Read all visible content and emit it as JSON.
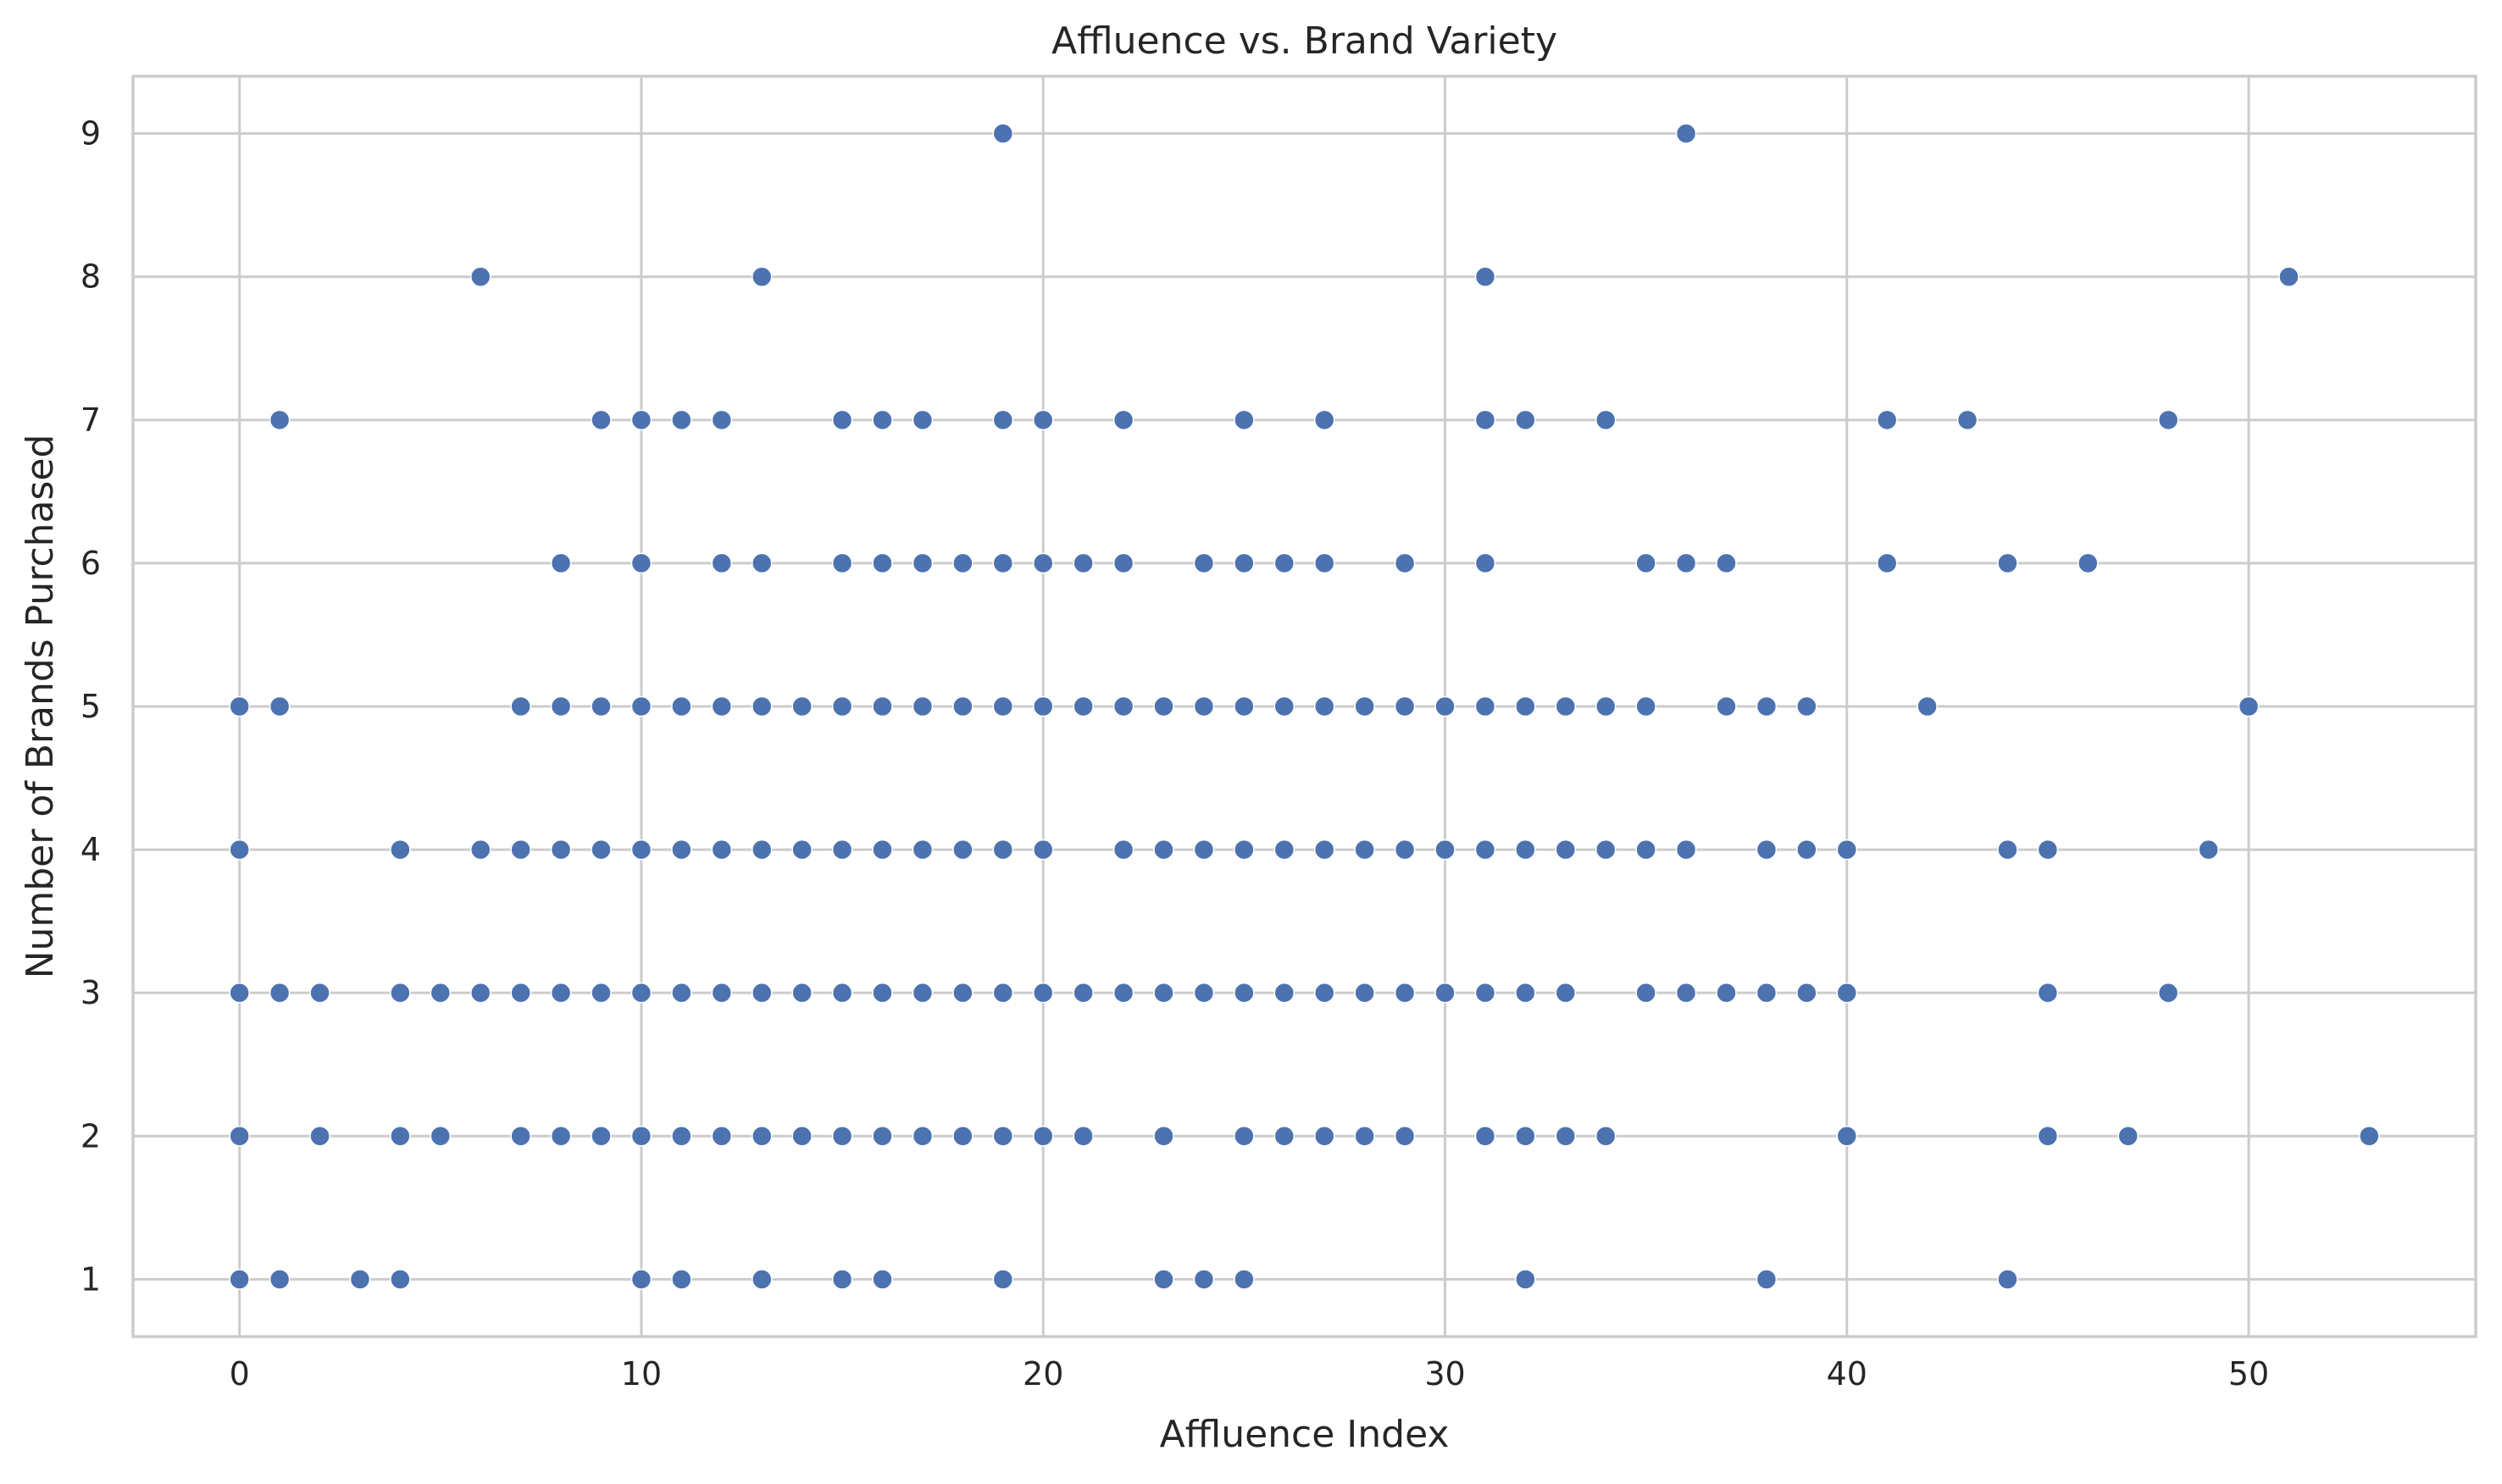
{
  "chart_data": {
    "type": "scatter",
    "title": "Affluence vs. Brand Variety",
    "xlabel": "Affluence Index",
    "ylabel": "Number of Brands Purchased",
    "xlim": [
      -2.65,
      55.65
    ],
    "ylim": [
      0.6,
      9.4
    ],
    "xticks": [
      0,
      10,
      20,
      30,
      40,
      50
    ],
    "yticks": [
      1,
      2,
      3,
      4,
      5,
      6,
      7,
      8,
      9
    ],
    "grid": true,
    "marker_color": "#4c72b0",
    "points": [
      [
        19,
        9
      ],
      [
        36,
        9
      ],
      [
        6,
        8
      ],
      [
        13,
        8
      ],
      [
        31,
        8
      ],
      [
        51,
        8
      ],
      [
        1,
        7
      ],
      [
        9,
        7
      ],
      [
        10,
        7
      ],
      [
        11,
        7
      ],
      [
        12,
        7
      ],
      [
        15,
        7
      ],
      [
        16,
        7
      ],
      [
        17,
        7
      ],
      [
        19,
        7
      ],
      [
        20,
        7
      ],
      [
        22,
        7
      ],
      [
        25,
        7
      ],
      [
        27,
        7
      ],
      [
        31,
        7
      ],
      [
        32,
        7
      ],
      [
        34,
        7
      ],
      [
        41,
        7
      ],
      [
        43,
        7
      ],
      [
        48,
        7
      ],
      [
        8,
        6
      ],
      [
        10,
        6
      ],
      [
        12,
        6
      ],
      [
        13,
        6
      ],
      [
        15,
        6
      ],
      [
        16,
        6
      ],
      [
        17,
        6
      ],
      [
        18,
        6
      ],
      [
        19,
        6
      ],
      [
        20,
        6
      ],
      [
        21,
        6
      ],
      [
        22,
        6
      ],
      [
        24,
        6
      ],
      [
        25,
        6
      ],
      [
        26,
        6
      ],
      [
        27,
        6
      ],
      [
        29,
        6
      ],
      [
        31,
        6
      ],
      [
        35,
        6
      ],
      [
        36,
        6
      ],
      [
        37,
        6
      ],
      [
        41,
        6
      ],
      [
        44,
        6
      ],
      [
        46,
        6
      ],
      [
        0,
        5
      ],
      [
        1,
        5
      ],
      [
        7,
        5
      ],
      [
        8,
        5
      ],
      [
        9,
        5
      ],
      [
        10,
        5
      ],
      [
        11,
        5
      ],
      [
        12,
        5
      ],
      [
        13,
        5
      ],
      [
        14,
        5
      ],
      [
        15,
        5
      ],
      [
        16,
        5
      ],
      [
        17,
        5
      ],
      [
        18,
        5
      ],
      [
        19,
        5
      ],
      [
        20,
        5
      ],
      [
        21,
        5
      ],
      [
        22,
        5
      ],
      [
        23,
        5
      ],
      [
        24,
        5
      ],
      [
        25,
        5
      ],
      [
        26,
        5
      ],
      [
        27,
        5
      ],
      [
        28,
        5
      ],
      [
        29,
        5
      ],
      [
        30,
        5
      ],
      [
        31,
        5
      ],
      [
        32,
        5
      ],
      [
        33,
        5
      ],
      [
        34,
        5
      ],
      [
        35,
        5
      ],
      [
        37,
        5
      ],
      [
        38,
        5
      ],
      [
        39,
        5
      ],
      [
        42,
        5
      ],
      [
        50,
        5
      ],
      [
        0,
        4
      ],
      [
        4,
        4
      ],
      [
        6,
        4
      ],
      [
        7,
        4
      ],
      [
        8,
        4
      ],
      [
        9,
        4
      ],
      [
        10,
        4
      ],
      [
        11,
        4
      ],
      [
        12,
        4
      ],
      [
        13,
        4
      ],
      [
        14,
        4
      ],
      [
        15,
        4
      ],
      [
        16,
        4
      ],
      [
        17,
        4
      ],
      [
        18,
        4
      ],
      [
        19,
        4
      ],
      [
        20,
        4
      ],
      [
        22,
        4
      ],
      [
        23,
        4
      ],
      [
        24,
        4
      ],
      [
        25,
        4
      ],
      [
        26,
        4
      ],
      [
        27,
        4
      ],
      [
        28,
        4
      ],
      [
        29,
        4
      ],
      [
        30,
        4
      ],
      [
        31,
        4
      ],
      [
        32,
        4
      ],
      [
        33,
        4
      ],
      [
        34,
        4
      ],
      [
        35,
        4
      ],
      [
        36,
        4
      ],
      [
        38,
        4
      ],
      [
        39,
        4
      ],
      [
        40,
        4
      ],
      [
        44,
        4
      ],
      [
        45,
        4
      ],
      [
        49,
        4
      ],
      [
        0,
        3
      ],
      [
        1,
        3
      ],
      [
        2,
        3
      ],
      [
        4,
        3
      ],
      [
        5,
        3
      ],
      [
        6,
        3
      ],
      [
        7,
        3
      ],
      [
        8,
        3
      ],
      [
        9,
        3
      ],
      [
        10,
        3
      ],
      [
        11,
        3
      ],
      [
        12,
        3
      ],
      [
        13,
        3
      ],
      [
        14,
        3
      ],
      [
        15,
        3
      ],
      [
        16,
        3
      ],
      [
        17,
        3
      ],
      [
        18,
        3
      ],
      [
        19,
        3
      ],
      [
        20,
        3
      ],
      [
        21,
        3
      ],
      [
        22,
        3
      ],
      [
        23,
        3
      ],
      [
        24,
        3
      ],
      [
        25,
        3
      ],
      [
        26,
        3
      ],
      [
        27,
        3
      ],
      [
        28,
        3
      ],
      [
        29,
        3
      ],
      [
        30,
        3
      ],
      [
        31,
        3
      ],
      [
        32,
        3
      ],
      [
        33,
        3
      ],
      [
        35,
        3
      ],
      [
        36,
        3
      ],
      [
        37,
        3
      ],
      [
        38,
        3
      ],
      [
        39,
        3
      ],
      [
        40,
        3
      ],
      [
        45,
        3
      ],
      [
        48,
        3
      ],
      [
        0,
        2
      ],
      [
        2,
        2
      ],
      [
        4,
        2
      ],
      [
        5,
        2
      ],
      [
        7,
        2
      ],
      [
        8,
        2
      ],
      [
        9,
        2
      ],
      [
        10,
        2
      ],
      [
        11,
        2
      ],
      [
        12,
        2
      ],
      [
        13,
        2
      ],
      [
        14,
        2
      ],
      [
        15,
        2
      ],
      [
        16,
        2
      ],
      [
        17,
        2
      ],
      [
        18,
        2
      ],
      [
        19,
        2
      ],
      [
        20,
        2
      ],
      [
        21,
        2
      ],
      [
        23,
        2
      ],
      [
        25,
        2
      ],
      [
        26,
        2
      ],
      [
        27,
        2
      ],
      [
        28,
        2
      ],
      [
        29,
        2
      ],
      [
        31,
        2
      ],
      [
        32,
        2
      ],
      [
        33,
        2
      ],
      [
        34,
        2
      ],
      [
        40,
        2
      ],
      [
        45,
        2
      ],
      [
        47,
        2
      ],
      [
        53,
        2
      ],
      [
        0,
        1
      ],
      [
        1,
        1
      ],
      [
        3,
        1
      ],
      [
        4,
        1
      ],
      [
        10,
        1
      ],
      [
        11,
        1
      ],
      [
        13,
        1
      ],
      [
        15,
        1
      ],
      [
        16,
        1
      ],
      [
        19,
        1
      ],
      [
        23,
        1
      ],
      [
        24,
        1
      ],
      [
        25,
        1
      ],
      [
        32,
        1
      ],
      [
        38,
        1
      ],
      [
        44,
        1
      ]
    ]
  }
}
